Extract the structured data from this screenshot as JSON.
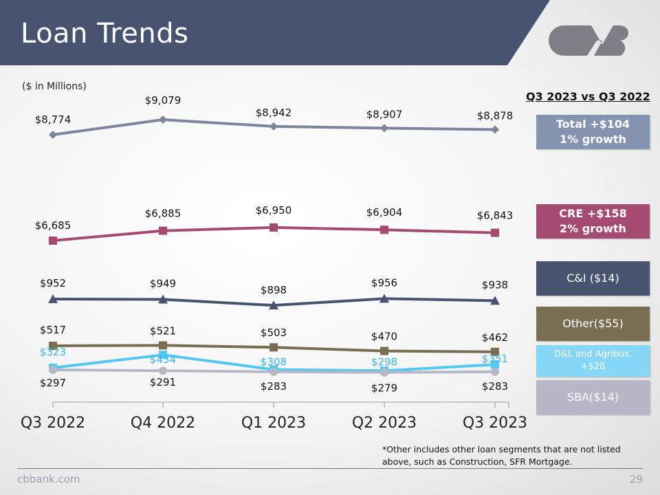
{
  "header": {
    "title": "Loan Trends",
    "logo_text": "CVB"
  },
  "units_note": "($ in Millions)",
  "comparison": {
    "heading": "Q3 2023 vs Q3 2022",
    "boxes": [
      {
        "line1": "Total +$104",
        "line2": "1% growth",
        "color": "#8593b0",
        "bold": true
      },
      {
        "line1": "CRE +$158",
        "line2": "2% growth",
        "color": "#a54b72",
        "bold": true
      },
      {
        "line1": "C&I ($14)",
        "line2": "",
        "color": "#48546f",
        "bold": false
      },
      {
        "line1": "Other($55)",
        "line2": "",
        "color": "#7a6e52",
        "bold": false
      },
      {
        "line1": "D&L and Agribus.",
        "line2": "+$28",
        "color": "#86d6f7",
        "bold": false
      },
      {
        "line1": "SBA($14)",
        "line2": "",
        "color": "#b6b8c8",
        "bold": false
      }
    ]
  },
  "chart_data": {
    "type": "line",
    "categories": [
      "Q3 2022",
      "Q4 2022",
      "Q1 2023",
      "Q2 2023",
      "Q3 2023"
    ],
    "series": [
      {
        "name": "Total",
        "values": [
          8774,
          9079,
          8942,
          8907,
          8878
        ],
        "labels": [
          "$8,774",
          "$9,079",
          "$8,942",
          "$8,907",
          "$8,878"
        ],
        "color": "#7d849e",
        "marker": "diamond",
        "label_color": "#111"
      },
      {
        "name": "CRE",
        "values": [
          6685,
          6885,
          6950,
          6904,
          6843
        ],
        "labels": [
          "$6,685",
          "$6,885",
          "$6,950",
          "$6,904",
          "$6,843"
        ],
        "color": "#a54b72",
        "marker": "square",
        "label_color": "#111"
      },
      {
        "name": "C&I",
        "values": [
          952,
          949,
          898,
          956,
          938
        ],
        "labels": [
          "$952",
          "$949",
          "$898",
          "$956",
          "$938"
        ],
        "color": "#48546f",
        "marker": "triangle",
        "label_color": "#111"
      },
      {
        "name": "Other",
        "values": [
          517,
          521,
          503,
          470,
          462
        ],
        "labels": [
          "$517",
          "$521",
          "$503",
          "$470",
          "$462"
        ],
        "color": "#7a6e52",
        "marker": "square",
        "label_color": "#111"
      },
      {
        "name": "D&L and Agribus.",
        "values": [
          323,
          434,
          308,
          298,
          351
        ],
        "labels": [
          "$323",
          "$434",
          "$308",
          "$298",
          "$351"
        ],
        "color": "#55c8f2",
        "marker": "square",
        "label_color": "#3bb5e6"
      },
      {
        "name": "SBA",
        "values": [
          297,
          291,
          283,
          279,
          283
        ],
        "labels": [
          "$297",
          "$291",
          "$283",
          "$279",
          "$283"
        ],
        "color": "#b6b8c8",
        "marker": "circle",
        "label_color": "#111"
      }
    ],
    "grid": false
  },
  "footnote": "*Other includes other loan segments that are not listed above, such as Construction, SFR Mortgage.",
  "footer": {
    "site": "cbbank.com",
    "page": "29"
  }
}
